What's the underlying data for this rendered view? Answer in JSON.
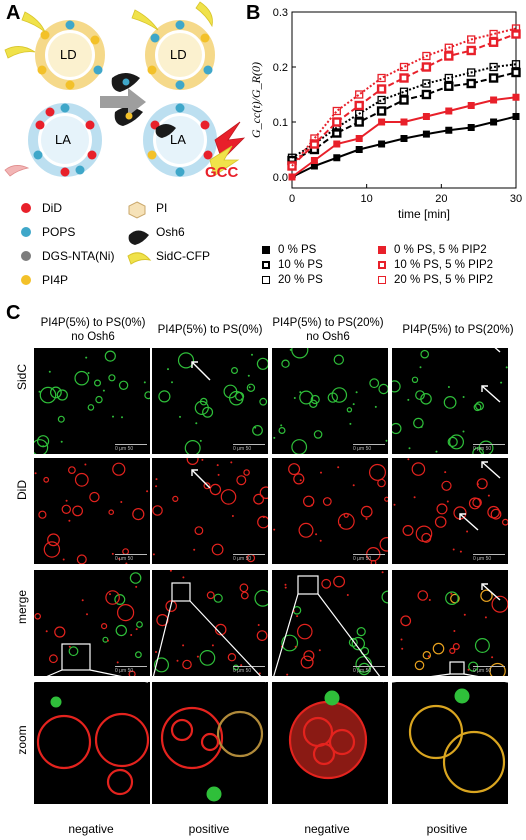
{
  "panels": {
    "a": "A",
    "b": "B",
    "c": "C"
  },
  "schematic": {
    "ld": "LD",
    "la": "LA",
    "gcc": "GCC",
    "legend_left": [
      "DiD",
      "POPS",
      "DGS-NTA(Ni)",
      "PI4P"
    ],
    "legend_right": [
      "PI",
      "Osh6",
      "SidC-CFP"
    ]
  },
  "colors": {
    "did": "#e8202a",
    "pops": "#3fa7c9",
    "dgs": "#7d7d7d",
    "pi4p": "#f3c129",
    "sidc": "#f0e24a",
    "series_red": "#e8202a",
    "series_black": "#000000"
  },
  "chart_data": {
    "type": "line",
    "ylabel": "G_cc(t)/G_R(0)",
    "xlabel": "time [min]",
    "xlim": [
      0,
      30
    ],
    "ylim": [
      -0.02,
      0.3
    ],
    "xticks": [
      "0",
      "10",
      "20",
      "30"
    ],
    "yticks": [
      "0.0",
      "0.1",
      "0.2",
      "0.3"
    ],
    "series": [
      {
        "name": "0 % PS",
        "color": "#000000",
        "marker": "filled-square",
        "line": "solid",
        "x": [
          0,
          3,
          6,
          9,
          12,
          15,
          18,
          21,
          24,
          27,
          30
        ],
        "y": [
          0.0,
          0.02,
          0.035,
          0.05,
          0.06,
          0.07,
          0.078,
          0.085,
          0.09,
          0.1,
          0.11
        ]
      },
      {
        "name": "10 % PS",
        "color": "#000000",
        "marker": "thick-open-square",
        "line": "dashed",
        "x": [
          0,
          3,
          6,
          9,
          12,
          15,
          18,
          21,
          24,
          27,
          30
        ],
        "y": [
          0.03,
          0.05,
          0.08,
          0.1,
          0.12,
          0.14,
          0.15,
          0.165,
          0.17,
          0.18,
          0.19
        ]
      },
      {
        "name": "20 % PS",
        "color": "#000000",
        "marker": "open-square",
        "line": "dotted",
        "x": [
          0,
          3,
          6,
          9,
          12,
          15,
          18,
          21,
          24,
          27,
          30
        ],
        "y": [
          0.035,
          0.06,
          0.09,
          0.115,
          0.14,
          0.155,
          0.17,
          0.18,
          0.19,
          0.2,
          0.205
        ]
      },
      {
        "name": "0 % PS, 5 % PIP2",
        "color": "#e8202a",
        "marker": "filled-square",
        "line": "solid",
        "x": [
          0,
          3,
          6,
          9,
          12,
          15,
          18,
          21,
          24,
          27,
          30
        ],
        "y": [
          0.0,
          0.03,
          0.06,
          0.07,
          0.1,
          0.1,
          0.11,
          0.12,
          0.13,
          0.14,
          0.145
        ]
      },
      {
        "name": "10 % PS, 5 % PIP2",
        "color": "#e8202a",
        "marker": "thick-open-square",
        "line": "dashed",
        "x": [
          0,
          3,
          6,
          9,
          12,
          15,
          18,
          21,
          24,
          27,
          30
        ],
        "y": [
          0.02,
          0.06,
          0.1,
          0.13,
          0.16,
          0.18,
          0.2,
          0.22,
          0.23,
          0.245,
          0.26
        ]
      },
      {
        "name": "20 % PS, 5 % PIP2",
        "color": "#e8202a",
        "marker": "open-square",
        "line": "dotted",
        "x": [
          0,
          3,
          6,
          9,
          12,
          15,
          18,
          21,
          24,
          27,
          30
        ],
        "y": [
          0.02,
          0.07,
          0.12,
          0.15,
          0.18,
          0.2,
          0.22,
          0.235,
          0.25,
          0.26,
          0.27
        ]
      }
    ]
  },
  "grid": {
    "columns": [
      "PI4P(5%) to PS(0%) no Osh6",
      "PI4P(5%) to PS(0%)",
      "PI4P(5%) to PS(20%) no Osh6",
      "PI4P(5%) to PS(20%)"
    ],
    "rows": [
      "SidC",
      "DiD",
      "merge",
      "zoom"
    ],
    "scalebar": "0  μm  50",
    "bottom": [
      "negative",
      "positive",
      "negative",
      "positive"
    ]
  }
}
